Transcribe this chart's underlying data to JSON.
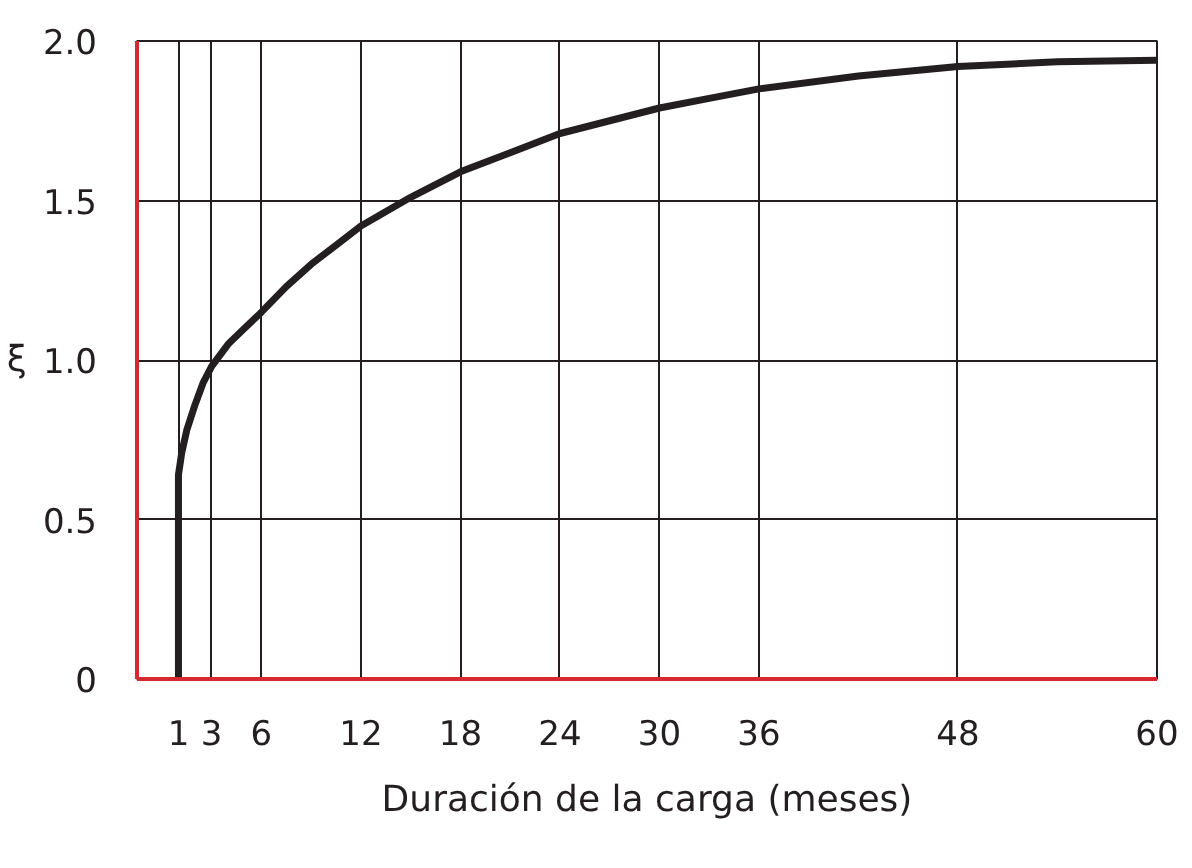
{
  "chart_data": {
    "type": "line",
    "xlabel": "Duración de la carga (meses)",
    "ylabel": "ξ",
    "x": [
      1,
      1,
      1.2,
      1.5,
      2,
      2.5,
      3,
      4,
      5,
      6,
      7.5,
      9,
      10.5,
      12,
      15,
      18,
      21,
      24,
      27,
      30,
      33,
      36,
      42,
      48,
      54,
      60
    ],
    "series": [
      {
        "color": "#231f20",
        "values": [
          0,
          0.64,
          0.71,
          0.78,
          0.86,
          0.93,
          0.98,
          1.05,
          1.1,
          1.15,
          1.23,
          1.3,
          1.36,
          1.42,
          1.51,
          1.59,
          1.65,
          1.71,
          1.75,
          1.79,
          1.82,
          1.85,
          1.89,
          1.92,
          1.935,
          1.94
        ]
      }
    ],
    "xlim": [
      -1.5,
      60
    ],
    "ylim": [
      0,
      2.0
    ],
    "xticks": [
      1,
      3,
      6,
      12,
      18,
      24,
      30,
      36,
      48,
      60
    ],
    "yticks": [
      0,
      0.5,
      {
        "value": 1,
        "label": "1.0"
      },
      1.5,
      {
        "value": 2,
        "label": "2.0"
      }
    ],
    "grid": true,
    "marker": "none",
    "line_style": "solid"
  }
}
